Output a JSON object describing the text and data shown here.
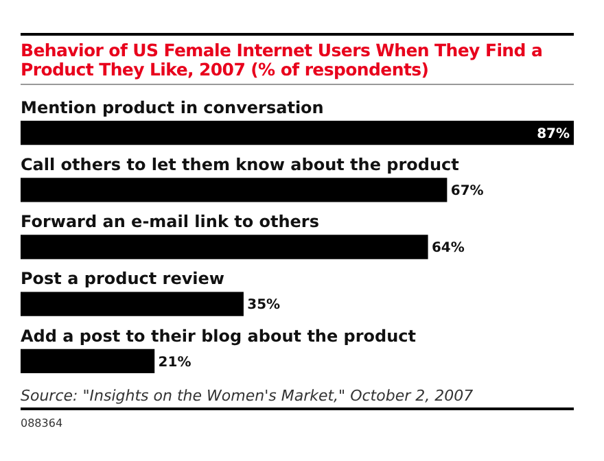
{
  "chart_data": {
    "type": "bar",
    "orientation": "horizontal",
    "title": "Behavior of US Female Internet Users When They Find a Product They Like, 2007 (% of respondents)",
    "categories": [
      "Mention product in conversation",
      "Call others to let them know about the product",
      "Forward an e-mail link to others",
      "Post a product review",
      "Add a post to their blog about the product"
    ],
    "values": [
      87,
      67,
      64,
      35,
      21
    ],
    "value_labels": [
      "87%",
      "67%",
      "64%",
      "35%",
      "21%"
    ],
    "color": "#000000",
    "annotations": [
      "Source: \"Insights on the Women's Market,\" October 2, 2007",
      "088364"
    ]
  }
}
